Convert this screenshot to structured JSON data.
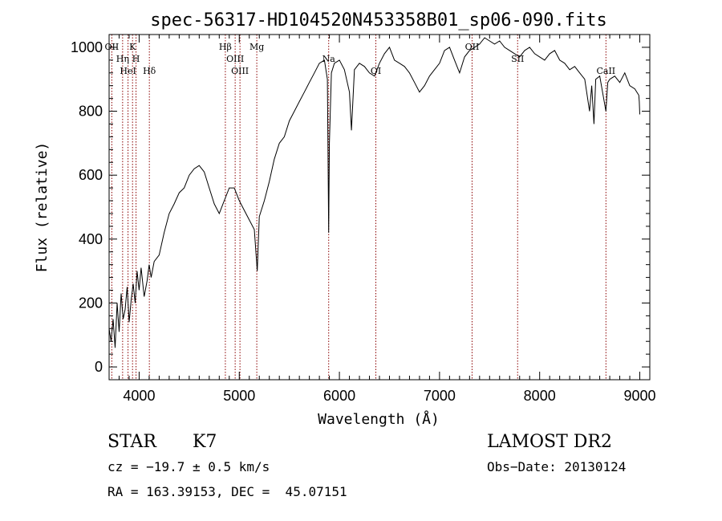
{
  "chart_data": {
    "type": "line",
    "title": "spec-56317-HD104520N453358B01_sp06-090.fits",
    "xlabel": "Wavelength (Å)",
    "ylabel": "Flux (relative)",
    "xlim": [
      3700,
      9100
    ],
    "ylim": [
      -40,
      1040
    ],
    "xticks": [
      4000,
      5000,
      6000,
      7000,
      8000,
      9000
    ],
    "yticks": [
      0,
      200,
      400,
      600,
      800,
      1000
    ],
    "grid": false,
    "series": [
      {
        "x": [
          3700,
          3720,
          3740,
          3760,
          3780,
          3800,
          3820,
          3840,
          3860,
          3880,
          3900,
          3920,
          3940,
          3960,
          3980,
          4000,
          4020,
          4050,
          4080,
          4100,
          4120,
          4150,
          4200,
          4250,
          4300,
          4350,
          4400,
          4450,
          4500,
          4550,
          4600,
          4650,
          4700,
          4750,
          4800,
          4850,
          4900,
          4950,
          5000,
          5050,
          5100,
          5150,
          5180,
          5200,
          5250,
          5300,
          5350,
          5400,
          5450,
          5500,
          5550,
          5600,
          5650,
          5700,
          5750,
          5800,
          5850,
          5880,
          5893,
          5900,
          5920,
          5950,
          6000,
          6050,
          6100,
          6120,
          6150,
          6200,
          6250,
          6300,
          6350,
          6400,
          6450,
          6500,
          6550,
          6600,
          6650,
          6700,
          6750,
          6800,
          6850,
          6900,
          6950,
          7000,
          7050,
          7100,
          7150,
          7200,
          7250,
          7300,
          7350,
          7400,
          7450,
          7500,
          7550,
          7600,
          7650,
          7700,
          7750,
          7800,
          7850,
          7900,
          7950,
          8000,
          8050,
          8100,
          8150,
          8200,
          8250,
          8300,
          8350,
          8400,
          8450,
          8498,
          8520,
          8542,
          8560,
          8600,
          8662,
          8680,
          8700,
          8750,
          8800,
          8850,
          8900,
          8950,
          8990,
          8995,
          9000
        ],
        "y": [
          120,
          80,
          150,
          60,
          200,
          110,
          230,
          150,
          180,
          250,
          140,
          210,
          260,
          200,
          300,
          240,
          310,
          220,
          270,
          320,
          280,
          330,
          350,
          420,
          480,
          510,
          545,
          560,
          600,
          620,
          630,
          610,
          560,
          510,
          480,
          520,
          560,
          560,
          520,
          490,
          460,
          430,
          300,
          470,
          520,
          580,
          650,
          700,
          720,
          770,
          800,
          830,
          860,
          890,
          920,
          950,
          960,
          900,
          420,
          700,
          920,
          950,
          960,
          930,
          860,
          740,
          930,
          950,
          940,
          920,
          910,
          950,
          980,
          1000,
          960,
          950,
          940,
          920,
          890,
          860,
          880,
          910,
          930,
          950,
          990,
          1000,
          960,
          920,
          970,
          990,
          1000,
          1010,
          1030,
          1020,
          1010,
          1020,
          1000,
          990,
          980,
          970,
          990,
          1000,
          980,
          970,
          960,
          980,
          990,
          960,
          950,
          930,
          940,
          920,
          900,
          800,
          880,
          760,
          900,
          910,
          800,
          890,
          900,
          910,
          890,
          920,
          880,
          870,
          850,
          830,
          790
        ]
      }
    ],
    "lines": [
      {
        "x": 3727,
        "label": "OII"
      },
      {
        "x": 3835,
        "label": "Hη"
      },
      {
        "x": 3889,
        "label": "HeI"
      },
      {
        "x": 3934,
        "label": "K"
      },
      {
        "x": 3969,
        "label": "H"
      },
      {
        "x": 4102,
        "label": "Hδ"
      },
      {
        "x": 4861,
        "label": "Hβ"
      },
      {
        "x": 4959,
        "label": "OIII"
      },
      {
        "x": 5007,
        "label": "OIII"
      },
      {
        "x": 5175,
        "label": "Mg"
      },
      {
        "x": 5893,
        "label": "Na"
      },
      {
        "x": 6364,
        "label": "OI"
      },
      {
        "x": 7325,
        "label": "OII"
      },
      {
        "x": 7780,
        "label": "SII"
      },
      {
        "x": 8662,
        "label": "CaII"
      }
    ]
  },
  "info": {
    "class": "STAR",
    "subclass": "K7",
    "survey": "LAMOST DR2",
    "cz": "cz = −19.7 ± 0.5 km/s",
    "obs_date": "Obs−Date: 20130124",
    "radec": "RA = 163.39153, DEC =  45.07151"
  },
  "colors": {
    "spectrum": "#000000",
    "marker_lines": "#8b0000"
  }
}
